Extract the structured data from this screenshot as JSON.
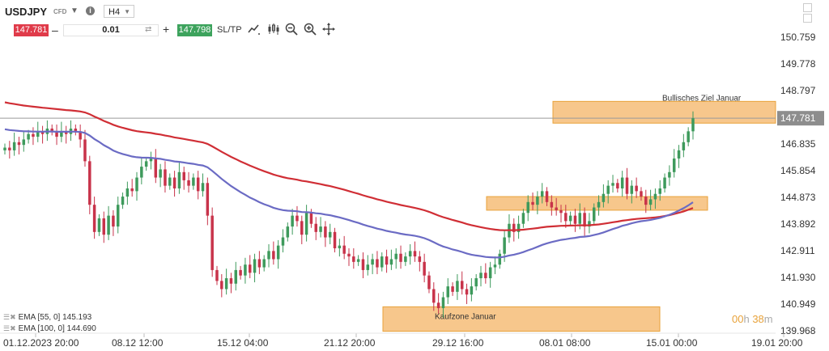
{
  "toolbar": {
    "symbol": "USDJPY",
    "symbol_type": "CFD",
    "timeframe": "H4",
    "bid": "147.781",
    "ask": "147.798",
    "quantity": "0.01",
    "minus_label": "–",
    "plus_label": "+",
    "sltp_label": "SL/TP",
    "icons": [
      "line-chart-icon",
      "candles-icon",
      "zoom-out-icon",
      "zoom-in-icon",
      "crosshair-icon"
    ]
  },
  "indicators": [
    {
      "label": "EMA [55, 0] 145.193",
      "color": "#6b6bc4"
    },
    {
      "label": "EMA [100, 0] 144.690",
      "color": "#d02e35"
    }
  ],
  "timer": {
    "hours": "00",
    "h_unit": "h",
    "minutes": "38",
    "m_unit": "m"
  },
  "chart_data": {
    "type": "candlestick",
    "current_price": 147.781,
    "current_price_label": "147.781",
    "y_ticks": [
      150.759,
      149.778,
      148.797,
      146.835,
      145.854,
      144.873,
      143.892,
      142.911,
      141.93,
      140.949,
      139.968
    ],
    "y_tick_labels": [
      "150.759",
      "149.778",
      "148.797",
      "146.835",
      "145.854",
      "144.873",
      "143.892",
      "142.911",
      "141.930",
      "140.949",
      "139.968"
    ],
    "x_tick_labels": [
      "01.12.2023 20:00",
      "08.12 12:00",
      "15.12 04:00",
      "21.12 20:00",
      "29.12 16:00",
      "08.01 08:00",
      "15.01 00:00",
      "19.01 20:00"
    ],
    "ylim": [
      139.968,
      150.759
    ],
    "close_series": [
      146.7,
      146.6,
      146.9,
      146.8,
      147.0,
      147.2,
      147.1,
      147.3,
      147.2,
      147.4,
      147.3,
      147.1,
      147.3,
      147.2,
      147.4,
      147.3,
      147.0,
      146.2,
      144.6,
      143.6,
      144.1,
      143.5,
      144.2,
      143.8,
      144.6,
      144.9,
      145.2,
      145.1,
      145.6,
      146.0,
      146.2,
      146.3,
      145.6,
      145.9,
      145.3,
      145.6,
      145.2,
      145.8,
      145.5,
      145.3,
      145.6,
      145.1,
      145.4,
      144.2,
      142.2,
      141.8,
      141.5,
      141.9,
      141.7,
      142.2,
      142.0,
      142.4,
      142.1,
      142.6,
      142.3,
      142.6,
      142.9,
      142.6,
      143.1,
      143.4,
      143.8,
      144.2,
      144.0,
      143.5,
      144.3,
      143.9,
      143.6,
      143.8,
      143.4,
      143.6,
      143.0,
      143.1,
      142.8,
      142.7,
      142.5,
      142.6,
      142.2,
      142.4,
      142.6,
      142.3,
      142.7,
      142.4,
      142.6,
      142.8,
      142.5,
      142.7,
      142.9,
      142.7,
      142.5,
      142.0,
      141.5,
      141.0,
      140.8,
      141.2,
      141.6,
      141.4,
      141.8,
      141.5,
      141.3,
      141.6,
      141.9,
      142.1,
      141.9,
      142.3,
      142.4,
      142.8,
      143.4,
      143.9,
      143.6,
      143.9,
      144.3,
      144.7,
      144.6,
      144.9,
      145.1,
      144.7,
      144.5,
      144.4,
      144.3,
      144.0,
      144.2,
      143.9,
      144.3,
      143.8,
      144.0,
      144.5,
      144.7,
      145.0,
      145.3,
      145.4,
      145.2,
      145.6,
      145.0,
      145.3,
      145.1,
      144.9,
      144.6,
      144.8,
      145.0,
      145.2,
      145.6,
      145.8,
      146.3,
      146.6,
      146.9,
      147.3,
      147.78
    ],
    "ema_55": {
      "name": "EMA [55, 0]",
      "start": 147.4,
      "end": 145.193
    },
    "ema_100": {
      "name": "EMA [100, 0]",
      "start": 148.4,
      "end": 144.69
    },
    "zones": [
      {
        "label": "Bullisches Ziel Januar",
        "from": 147.6,
        "to": 148.4
      },
      {
        "label": "",
        "from": 144.4,
        "to": 144.9
      },
      {
        "label": "Kaufzone Januar",
        "from": 139.95,
        "to": 140.85
      }
    ],
    "colors": {
      "up": "#3e9a5c",
      "down": "#c8334a",
      "zone": "#f6bd78",
      "zone_border": "#e8a23a",
      "ema55": "#6b6bc4",
      "ema100": "#d02e35",
      "price_line": "#9a9a9a"
    }
  }
}
